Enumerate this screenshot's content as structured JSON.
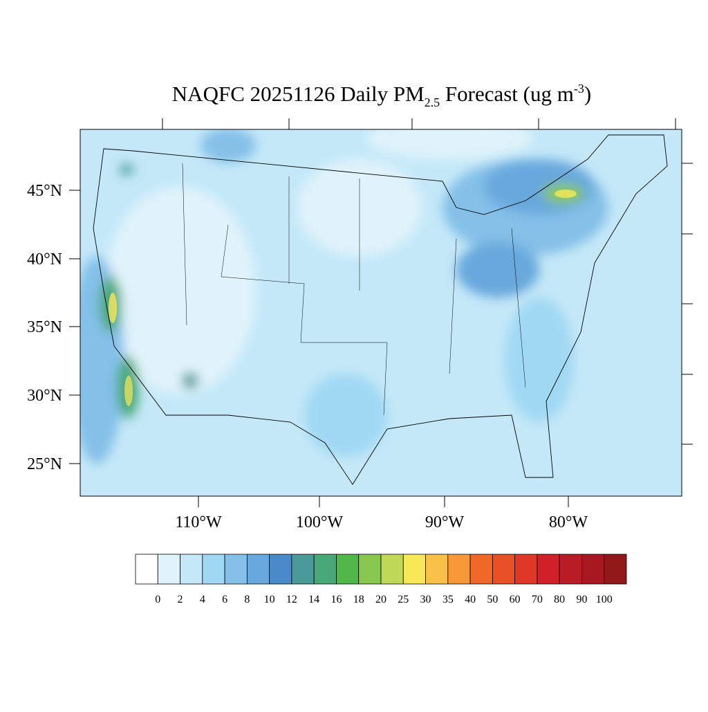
{
  "title": {
    "main": "NAQFC 20251126 Daily PM",
    "sub": "2.5",
    "mid": " Forecast (ug m",
    "sup": "-3",
    "end": ")"
  },
  "lat_labels": [
    "45°N",
    "40°N",
    "35°N",
    "30°N",
    "25°N"
  ],
  "lon_labels": [
    "110°W",
    "100°W",
    "90°W",
    "80°W"
  ],
  "colorbar": {
    "levels": [
      0,
      2,
      4,
      6,
      8,
      10,
      12,
      14,
      16,
      18,
      20,
      25,
      30,
      35,
      40,
      50,
      60,
      70,
      80,
      90,
      100
    ],
    "colors": [
      "#ffffff",
      "#e0f3fb",
      "#c4e8f8",
      "#a0d8f3",
      "#84c0e8",
      "#68a8dc",
      "#4a8ac8",
      "#4a9a9a",
      "#48a878",
      "#50b848",
      "#88c850",
      "#c0d858",
      "#f8e858",
      "#f8c048",
      "#f89838",
      "#f06828",
      "#e85028",
      "#e03828",
      "#d02028",
      "#b81c24",
      "#a81820",
      "#901818"
    ]
  }
}
